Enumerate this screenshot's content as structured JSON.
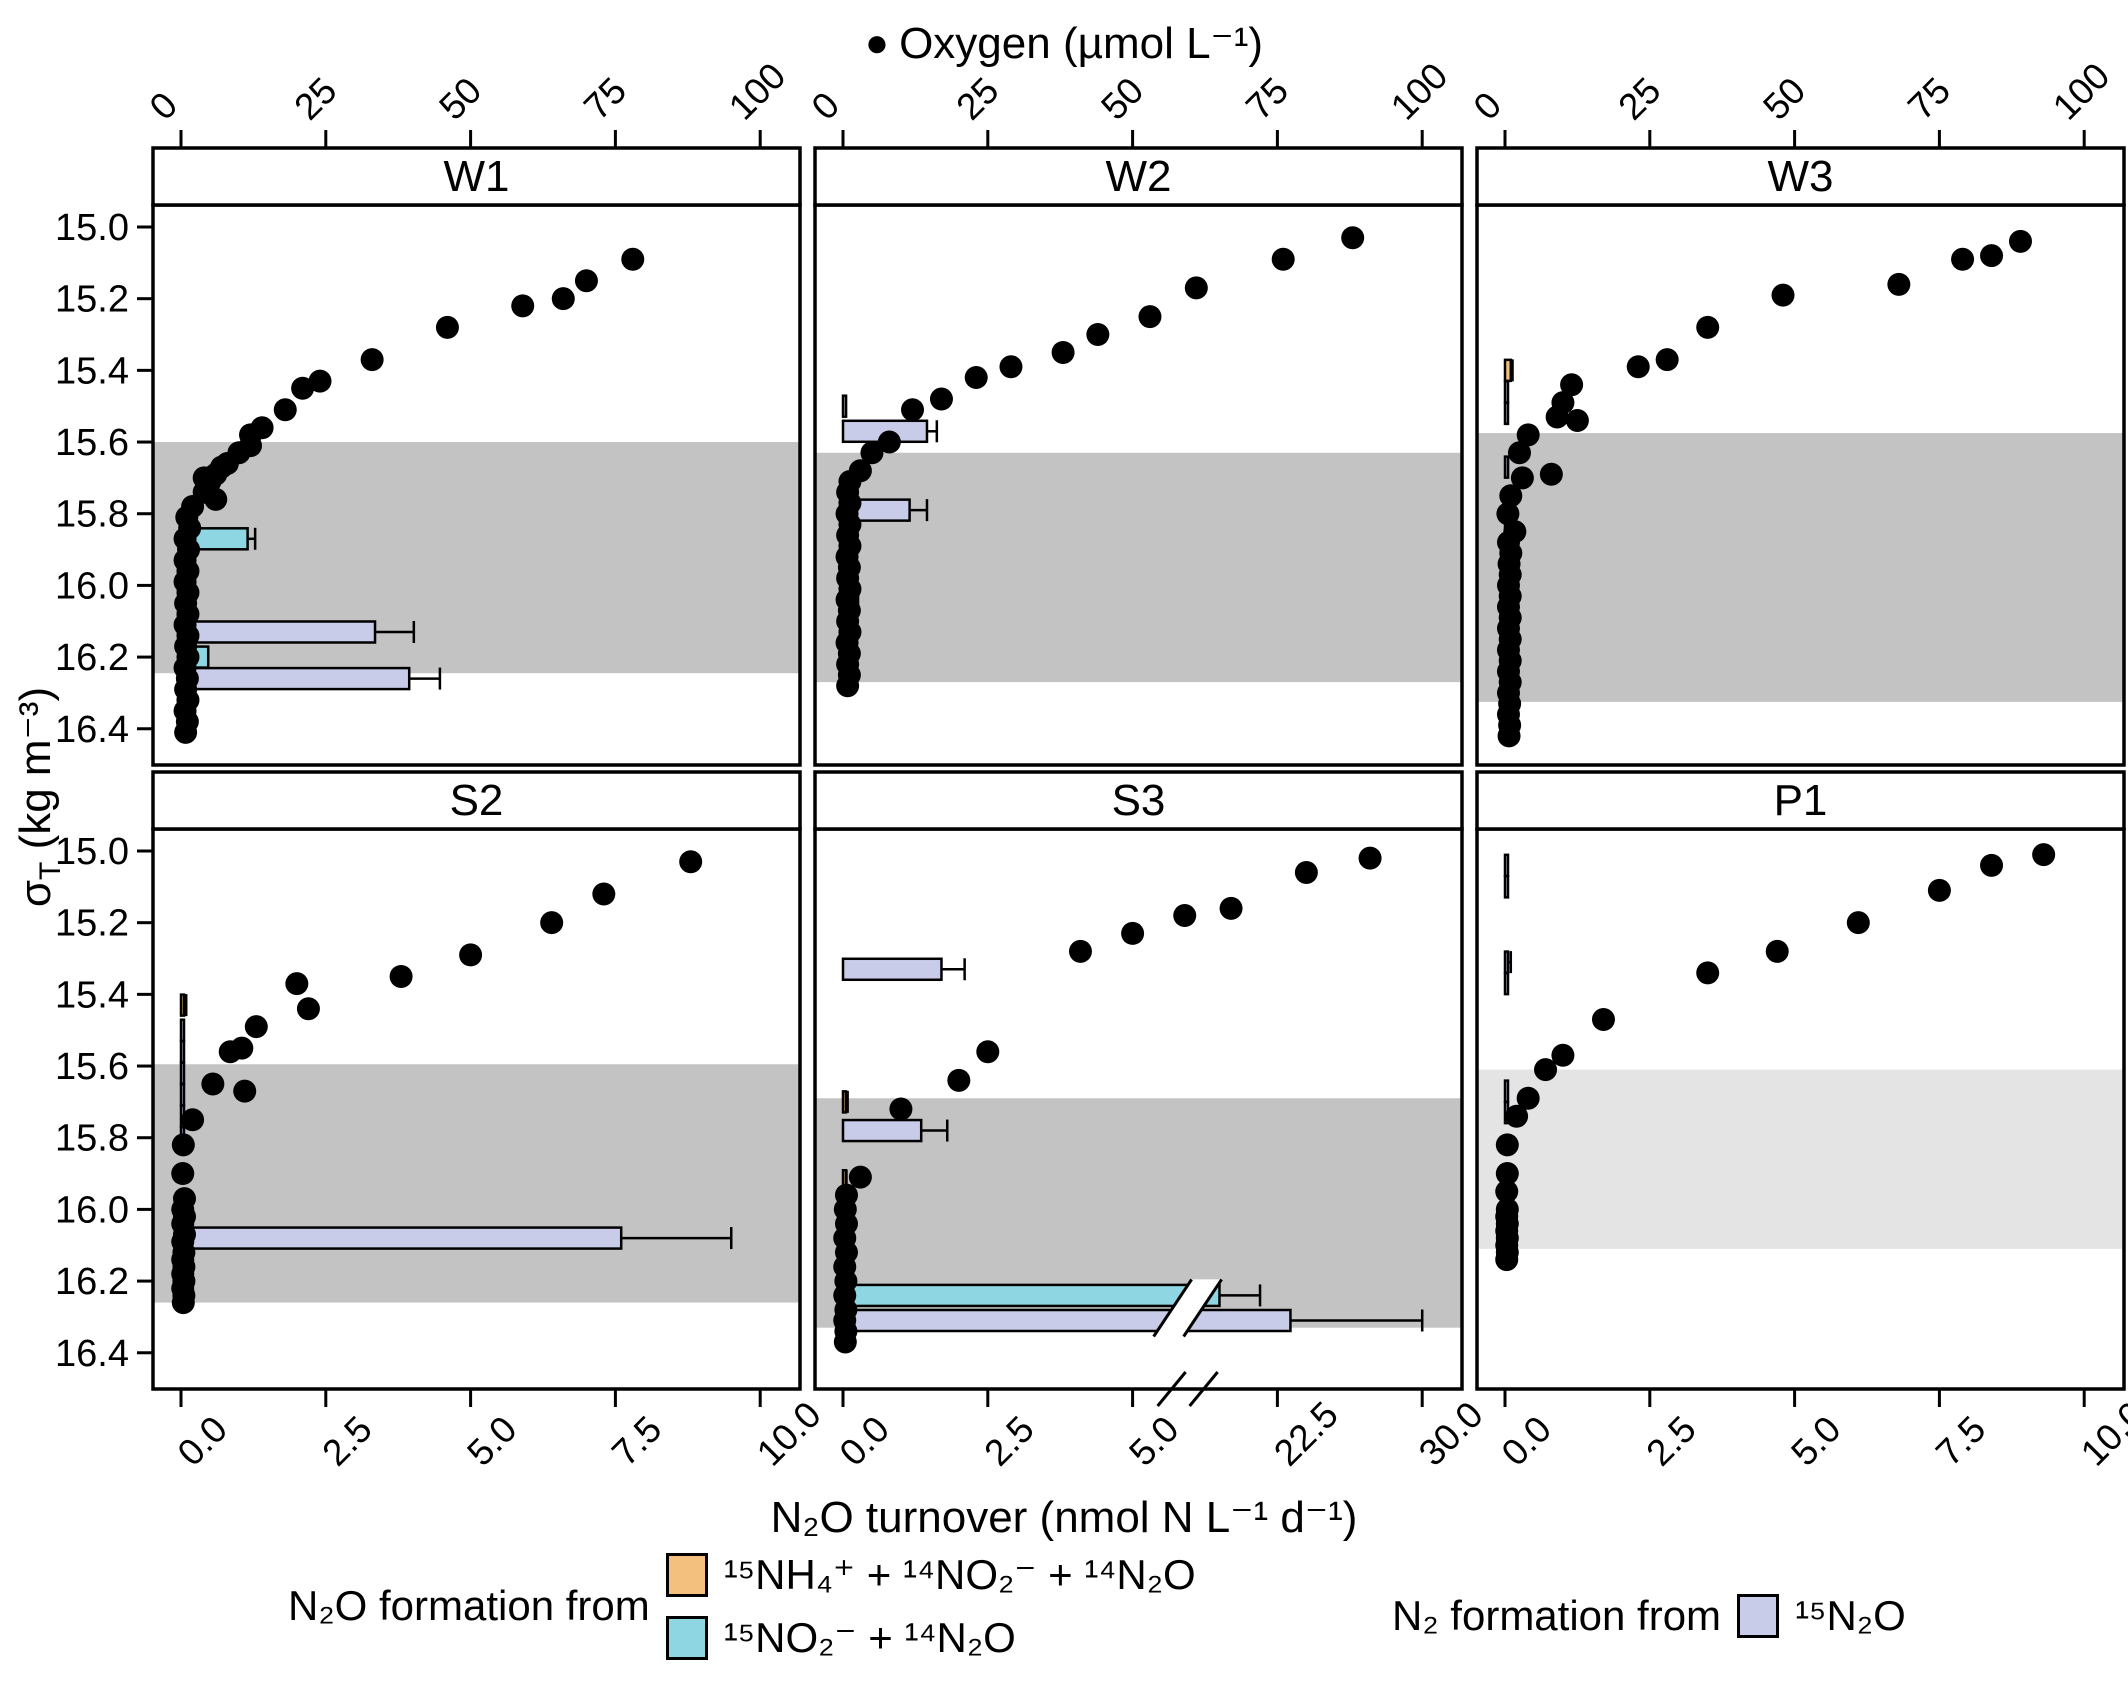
{
  "figure": {
    "top_axis_title": "Oxygen (µmol L⁻¹)",
    "oxygen_marker": "●",
    "y_axis_title_sigma": "σ",
    "y_axis_title_sub": "T",
    "y_axis_title_rest": " (kg m⁻³)",
    "bottom_axis_title": "N₂O turnover (nmol N L⁻¹ d⁻¹)",
    "legend": {
      "n2o_title": "N₂O formation from",
      "entry_nh4": "¹⁵NH₄⁺ + ¹⁴NO₂⁻ + ¹⁴N₂O",
      "entry_no2": "¹⁵NO₂⁻ + ¹⁴N₂O",
      "n2_title": "N₂ formation from",
      "entry_n2o": "¹⁵N₂O"
    }
  },
  "chart_data": {
    "type": "scatter",
    "description": "Six-panel depth-profile figure: black dots = oxygen vs density, horizontal bars = N2O/N2 turnover rates with error whiskers, grey band = oxygen-deficient zone",
    "colors": {
      "teal": "#8ed7e2",
      "orange": "#f3c17d",
      "purple": "#c9cce9",
      "band": "#c3c3c3",
      "band_light": "#e4e4e4",
      "point": "#000000"
    },
    "axes": {
      "oxygen_range": [
        0,
        100
      ],
      "oxygen_ticks": [
        "0",
        "25",
        "50",
        "75",
        "100"
      ],
      "turnover_range": [
        0,
        10
      ],
      "turnover_ticks": [
        "0.0",
        "2.5",
        "5.0",
        "7.5",
        "10.0"
      ],
      "turnover_ticks_s3": [
        "0.0",
        "2.5",
        "5.0",
        "22.5",
        "30.0"
      ],
      "s3_axis_break": [
        5,
        22.5
      ],
      "sigma_range": [
        15.0,
        16.4
      ],
      "sigma_ticks": [
        "15.0",
        "15.2",
        "15.4",
        "15.6",
        "15.8",
        "16.0",
        "16.2",
        "16.4"
      ]
    },
    "panels": [
      {
        "label": "W1",
        "row": 0,
        "col": 0,
        "band": [
          15.6,
          16.245
        ],
        "band_light": false,
        "oxygen": [
          [
            15.09,
            78
          ],
          [
            15.15,
            70
          ],
          [
            15.2,
            66
          ],
          [
            15.22,
            59
          ],
          [
            15.28,
            46
          ],
          [
            15.37,
            33
          ],
          [
            15.43,
            24
          ],
          [
            15.45,
            21
          ],
          [
            15.51,
            18
          ],
          [
            15.56,
            14
          ],
          [
            15.58,
            12
          ],
          [
            15.61,
            12
          ],
          [
            15.63,
            10
          ],
          [
            15.66,
            8
          ],
          [
            15.67,
            7
          ],
          [
            15.69,
            6
          ],
          [
            15.7,
            4
          ],
          [
            15.71,
            5
          ],
          [
            15.74,
            4
          ],
          [
            15.76,
            6
          ],
          [
            15.78,
            2
          ],
          [
            15.81,
            1
          ],
          [
            15.84,
            1.5
          ],
          [
            15.87,
            0.7
          ],
          [
            15.9,
            1.3
          ],
          [
            15.93,
            0.7
          ],
          [
            15.96,
            1.2
          ],
          [
            15.99,
            0.7
          ],
          [
            16.02,
            1.2
          ],
          [
            16.05,
            0.8
          ],
          [
            16.08,
            1.2
          ],
          [
            16.11,
            0.7
          ],
          [
            16.14,
            1.2
          ],
          [
            16.17,
            0.8
          ],
          [
            16.2,
            1.2
          ],
          [
            16.23,
            0.7
          ],
          [
            16.26,
            1.1
          ],
          [
            16.29,
            0.8
          ],
          [
            16.32,
            1.2
          ],
          [
            16.35,
            0.7
          ],
          [
            16.38,
            1.1
          ],
          [
            16.41,
            0.8
          ]
        ],
        "bars": [
          {
            "s": 15.87,
            "v": 1.15,
            "w": 1.28,
            "c": "teal"
          },
          {
            "s": 16.06,
            "v": 0.12,
            "w": 0.16,
            "c": "orange"
          },
          {
            "s": 16.06,
            "v": 0.04,
            "w": 0,
            "c": "teal"
          },
          {
            "s": 16.13,
            "v": 3.35,
            "w": 4.02,
            "c": "purple"
          },
          {
            "s": 16.2,
            "v": 0.47,
            "w": 0,
            "c": "teal"
          },
          {
            "s": 16.26,
            "v": 3.94,
            "w": 4.47,
            "c": "purple"
          }
        ]
      },
      {
        "label": "W2",
        "row": 0,
        "col": 1,
        "band": [
          15.63,
          16.27
        ],
        "band_light": false,
        "oxygen": [
          [
            15.03,
            88
          ],
          [
            15.09,
            76
          ],
          [
            15.17,
            61
          ],
          [
            15.25,
            53
          ],
          [
            15.3,
            44
          ],
          [
            15.35,
            38
          ],
          [
            15.39,
            29
          ],
          [
            15.42,
            23
          ],
          [
            15.48,
            17
          ],
          [
            15.51,
            12
          ],
          [
            15.6,
            8
          ],
          [
            15.63,
            5
          ],
          [
            15.68,
            3
          ],
          [
            15.71,
            1.2
          ],
          [
            15.74,
            0.8
          ],
          [
            15.77,
            1.2
          ],
          [
            15.8,
            0.7
          ],
          [
            15.83,
            1.2
          ],
          [
            15.86,
            0.8
          ],
          [
            15.89,
            1.2
          ],
          [
            15.92,
            0.7
          ],
          [
            15.95,
            1.1
          ],
          [
            15.98,
            0.8
          ],
          [
            16.01,
            1.2
          ],
          [
            16.04,
            0.7
          ],
          [
            16.07,
            1.1
          ],
          [
            16.1,
            0.8
          ],
          [
            16.13,
            1.2
          ],
          [
            16.16,
            0.7
          ],
          [
            16.19,
            1.1
          ],
          [
            16.22,
            0.8
          ],
          [
            16.25,
            1.1
          ],
          [
            16.28,
            0.8
          ]
        ],
        "bars": [
          {
            "s": 15.5,
            "v": 0.02,
            "w": 0.05,
            "c": "purple"
          },
          {
            "s": 15.57,
            "v": 1.45,
            "w": 1.62,
            "c": "purple"
          },
          {
            "s": 15.72,
            "v": 0.02,
            "w": 0.05,
            "c": "purple"
          },
          {
            "s": 15.79,
            "v": 1.15,
            "w": 1.45,
            "c": "purple"
          },
          {
            "s": 16.05,
            "v": 0.2,
            "w": 0.26,
            "c": "orange"
          },
          {
            "s": 16.05,
            "v": 0.05,
            "w": 0,
            "c": "teal"
          }
        ]
      },
      {
        "label": "W3",
        "row": 0,
        "col": 2,
        "band": [
          15.575,
          16.325
        ],
        "band_light": false,
        "oxygen": [
          [
            15.04,
            89
          ],
          [
            15.08,
            84
          ],
          [
            15.09,
            79
          ],
          [
            15.16,
            68
          ],
          [
            15.19,
            48
          ],
          [
            15.28,
            35
          ],
          [
            15.37,
            28
          ],
          [
            15.39,
            23
          ],
          [
            15.44,
            11.5
          ],
          [
            15.49,
            10
          ],
          [
            15.53,
            9
          ],
          [
            15.54,
            12.5
          ],
          [
            15.58,
            4
          ],
          [
            15.63,
            2.5
          ],
          [
            15.69,
            8
          ],
          [
            15.7,
            3
          ],
          [
            15.75,
            1
          ],
          [
            15.8,
            0.5
          ],
          [
            15.85,
            1.7
          ],
          [
            15.88,
            0.6
          ],
          [
            15.91,
            1
          ],
          [
            15.94,
            0.7
          ],
          [
            15.97,
            0.9
          ],
          [
            16.0,
            0.6
          ],
          [
            16.03,
            0.9
          ],
          [
            16.06,
            0.6
          ],
          [
            16.09,
            0.9
          ],
          [
            16.12,
            0.6
          ],
          [
            16.15,
            0.9
          ],
          [
            16.18,
            0.6
          ],
          [
            16.21,
            0.9
          ],
          [
            16.24,
            0.6
          ],
          [
            16.27,
            0.9
          ],
          [
            16.3,
            0.6
          ],
          [
            16.33,
            0.8
          ],
          [
            16.36,
            0.6
          ],
          [
            16.39,
            0.8
          ],
          [
            16.42,
            0.7
          ]
        ],
        "bars": [
          {
            "s": 15.4,
            "v": 0.1,
            "w": 0.13,
            "c": "orange"
          },
          {
            "s": 15.46,
            "v": 0.02,
            "w": 0.04,
            "c": "purple"
          },
          {
            "s": 15.52,
            "v": 0.02,
            "w": 0.04,
            "c": "purple"
          },
          {
            "s": 15.67,
            "v": 0.02,
            "w": 0.05,
            "c": "purple"
          },
          {
            "s": 15.86,
            "v": 0.03,
            "w": 0.07,
            "c": "purple"
          }
        ]
      },
      {
        "label": "S2",
        "row": 1,
        "col": 0,
        "band": [
          15.595,
          16.26
        ],
        "band_light": false,
        "oxygen": [
          [
            15.03,
            88
          ],
          [
            15.12,
            73
          ],
          [
            15.2,
            64
          ],
          [
            15.29,
            50
          ],
          [
            15.35,
            38
          ],
          [
            15.37,
            20
          ],
          [
            15.44,
            22
          ],
          [
            15.49,
            13
          ],
          [
            15.55,
            10.5
          ],
          [
            15.56,
            8.5
          ],
          [
            15.65,
            5.5
          ],
          [
            15.67,
            11
          ],
          [
            15.75,
            2
          ],
          [
            15.82,
            0.4
          ],
          [
            15.9,
            0.3
          ],
          [
            15.97,
            0.6
          ],
          [
            16.0,
            0.3
          ],
          [
            16.02,
            0.6
          ],
          [
            16.04,
            0.3
          ],
          [
            16.07,
            0.6
          ],
          [
            16.09,
            0.3
          ],
          [
            16.12,
            0.5
          ],
          [
            16.14,
            0.3
          ],
          [
            16.16,
            0.5
          ],
          [
            16.18,
            0.3
          ],
          [
            16.2,
            0.5
          ],
          [
            16.22,
            0.3
          ],
          [
            16.24,
            0.5
          ],
          [
            16.26,
            0.4
          ]
        ],
        "bars": [
          {
            "s": 15.43,
            "v": 0.05,
            "w": 0.09,
            "c": "orange"
          },
          {
            "s": 15.5,
            "v": 0.015,
            "w": 0,
            "c": "purple"
          },
          {
            "s": 15.56,
            "v": 0.015,
            "w": 0,
            "c": "purple"
          },
          {
            "s": 15.62,
            "v": 0.015,
            "w": 0,
            "c": "purple"
          },
          {
            "s": 15.68,
            "v": 0.015,
            "w": 0,
            "c": "purple"
          },
          {
            "s": 15.74,
            "v": 0.015,
            "w": 0,
            "c": "purple"
          },
          {
            "s": 15.8,
            "v": 0.015,
            "w": 0.04,
            "c": "purple"
          },
          {
            "s": 16.01,
            "v": 0.13,
            "w": 0,
            "c": "teal"
          },
          {
            "s": 16.08,
            "v": 7.6,
            "w": 9.5,
            "c": "purple"
          }
        ]
      },
      {
        "label": "S3",
        "row": 1,
        "col": 1,
        "band": [
          15.69,
          16.33
        ],
        "band_light": false,
        "axis_break": true,
        "oxygen": [
          [
            15.02,
            91
          ],
          [
            15.06,
            80
          ],
          [
            15.16,
            67
          ],
          [
            15.18,
            59
          ],
          [
            15.23,
            50
          ],
          [
            15.28,
            41
          ],
          [
            15.56,
            25
          ],
          [
            15.64,
            20
          ],
          [
            15.72,
            10
          ],
          [
            15.91,
            3
          ],
          [
            15.96,
            0.6
          ],
          [
            16.0,
            0.4
          ],
          [
            16.04,
            0.6
          ],
          [
            16.08,
            0.3
          ],
          [
            16.12,
            0.6
          ],
          [
            16.16,
            0.3
          ],
          [
            16.2,
            0.5
          ],
          [
            16.24,
            0.3
          ],
          [
            16.28,
            0.5
          ],
          [
            16.31,
            0.3
          ],
          [
            16.34,
            0.5
          ],
          [
            16.37,
            0.4
          ]
        ],
        "bars": [
          {
            "s": 15.33,
            "v": 1.7,
            "w": 2.1,
            "c": "purple"
          },
          {
            "s": 15.7,
            "v": 0.05,
            "w": 0.08,
            "c": "orange"
          },
          {
            "s": 15.78,
            "v": 1.35,
            "w": 1.8,
            "c": "purple"
          },
          {
            "s": 15.92,
            "v": 0.04,
            "w": 0.06,
            "c": "orange"
          },
          {
            "s": 16.24,
            "v": 20,
            "w": 22,
            "c": "teal"
          },
          {
            "s": 16.31,
            "v": 23.5,
            "w": 30,
            "c": "purple"
          }
        ]
      },
      {
        "label": "P1",
        "row": 1,
        "col": 2,
        "band": [
          15.61,
          16.11
        ],
        "band_light": true,
        "oxygen": [
          [
            15.01,
            93
          ],
          [
            15.04,
            84
          ],
          [
            15.11,
            75
          ],
          [
            15.2,
            61
          ],
          [
            15.28,
            47
          ],
          [
            15.34,
            35
          ],
          [
            15.47,
            17
          ],
          [
            15.57,
            10
          ],
          [
            15.61,
            7
          ],
          [
            15.69,
            4
          ],
          [
            15.74,
            2
          ],
          [
            15.82,
            0.4
          ],
          [
            15.9,
            0.4
          ],
          [
            15.95,
            0.3
          ],
          [
            16.0,
            0.4
          ],
          [
            16.02,
            0.3
          ],
          [
            16.04,
            0.4
          ],
          [
            16.06,
            0.3
          ],
          [
            16.08,
            0.4
          ],
          [
            16.1,
            0.3
          ],
          [
            16.12,
            0.4
          ],
          [
            16.14,
            0.3
          ]
        ],
        "bars": [
          {
            "s": 15.04,
            "v": 0.015,
            "w": 0,
            "c": "purple"
          },
          {
            "s": 15.1,
            "v": 0.015,
            "w": 0,
            "c": "purple"
          },
          {
            "s": 15.31,
            "v": 0.015,
            "w": 0.1,
            "c": "purple"
          },
          {
            "s": 15.37,
            "v": 0.015,
            "w": 0,
            "c": "purple"
          },
          {
            "s": 15.67,
            "v": 0.015,
            "w": 0,
            "c": "purple"
          },
          {
            "s": 15.73,
            "v": 0.015,
            "w": 0,
            "c": "purple"
          }
        ]
      }
    ]
  }
}
